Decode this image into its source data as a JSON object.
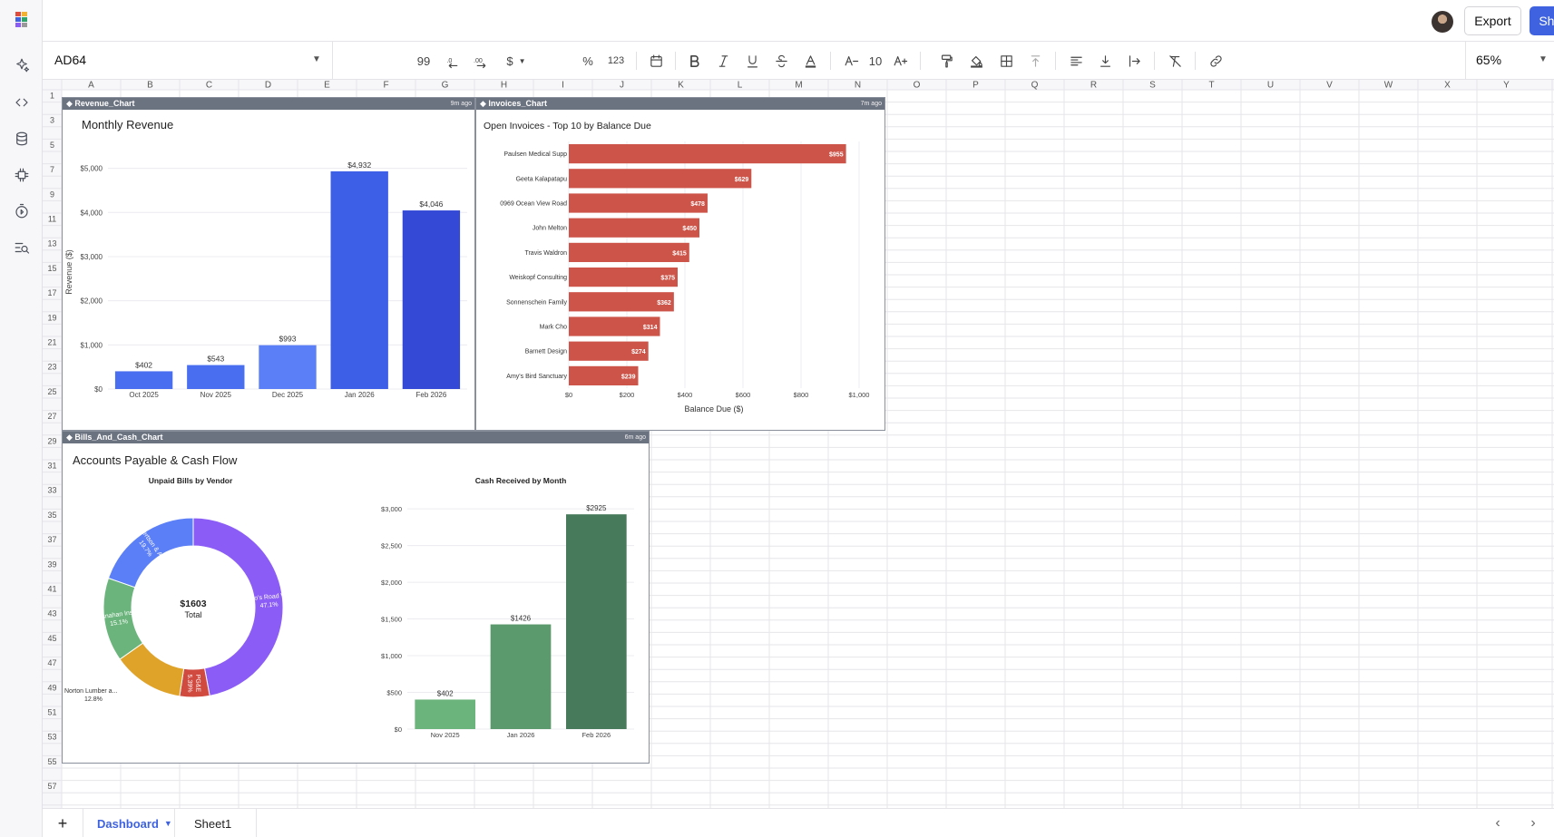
{
  "topbar": {
    "export_label": "Export",
    "share_label": "Share"
  },
  "toolbar": {
    "name_box": "AD64",
    "decimals_label": "99",
    "currency_label": "$",
    "percent_label": "%",
    "number_format_label": "123",
    "font_size": "10",
    "zoom": "65%"
  },
  "grid": {
    "columns": [
      "A",
      "B",
      "C",
      "D",
      "E",
      "F",
      "G",
      "H",
      "I",
      "J",
      "K",
      "L",
      "M",
      "N",
      "O",
      "P",
      "Q",
      "R",
      "S",
      "T",
      "U",
      "V",
      "W",
      "X",
      "Y"
    ],
    "row_labels": [
      "1",
      "3",
      "5",
      "7",
      "9",
      "11",
      "13",
      "15",
      "17",
      "19",
      "21",
      "23",
      "25",
      "27",
      "29",
      "31",
      "33",
      "35",
      "37",
      "39",
      "41",
      "43",
      "45",
      "47",
      "49",
      "51",
      "53",
      "55",
      "57"
    ]
  },
  "panels": {
    "revenue": {
      "name": "Revenue_Chart",
      "age": "9m ago"
    },
    "invoices": {
      "name": "Invoices_Chart",
      "age": "7m ago"
    },
    "bills": {
      "name": "Bills_And_Cash_Chart",
      "age": "6m ago"
    }
  },
  "tabs": {
    "dashboard": "Dashboard",
    "sheet1": "Sheet1"
  },
  "colors": {
    "accent": "#3f63e0",
    "revenue_bars": [
      "#4a6ef0",
      "#4a6ef0",
      "#5b7ff6",
      "#3d5ee6",
      "#3449d6"
    ],
    "invoice_bars": "#cd5449",
    "donut": [
      "#8b5cf6",
      "#d04a40",
      "#e0a32a",
      "#6bb57c",
      "#5b7ff6"
    ],
    "cash_bars": [
      "#6bb57c",
      "#5a9a6c",
      "#477a5a"
    ]
  },
  "chart_data": [
    {
      "type": "bar",
      "title": "Monthly Revenue",
      "categories": [
        "Oct 2025",
        "Nov 2025",
        "Dec 2025",
        "Jan 2026",
        "Feb 2026"
      ],
      "values": [
        402,
        543,
        993,
        4932,
        4046
      ],
      "data_labels": [
        "$402",
        "$543",
        "$993",
        "$4,932",
        "$4,046"
      ],
      "ylabel": "Revenue ($)",
      "ylim": [
        0,
        5300
      ],
      "yticks": [
        0,
        1000,
        2000,
        3000,
        4000,
        5000
      ],
      "ytick_labels": [
        "$0",
        "$1,000",
        "$2,000",
        "$3,000",
        "$4,000",
        "$5,000"
      ],
      "grid": true
    },
    {
      "type": "bar",
      "orientation": "horizontal",
      "title": "Open Invoices - Top 10 by Balance Due",
      "categories": [
        "Paulsen Medical Supp",
        "Geeta Kalapatapu",
        "0969 Ocean View Road",
        "John Melton",
        "Travis Waldron",
        "Weiskopf Consulting",
        "Sonnenschein Family",
        "Mark Cho",
        "Barnett Design",
        "Amy's Bird Sanctuary"
      ],
      "values": [
        955,
        629,
        478,
        450,
        415,
        375,
        362,
        314,
        274,
        239
      ],
      "data_labels": [
        "$955",
        "$629",
        "$478",
        "$450",
        "$415",
        "$375",
        "$362",
        "$314",
        "$274",
        "$239"
      ],
      "xlabel": "Balance Due ($)",
      "xlim": [
        0,
        1000
      ],
      "xticks": [
        0,
        200,
        400,
        600,
        800,
        1000
      ],
      "xtick_labels": [
        "$0",
        "$200",
        "$400",
        "$600",
        "$800",
        "$1,000"
      ],
      "grid": true
    },
    {
      "type": "pie",
      "title": "Accounts Payable & Cash Flow",
      "subtitle": "Unpaid Bills by Vendor",
      "hole": true,
      "center_value": "$1603",
      "center_label": "Total",
      "slices": [
        {
          "label": "Diego's Road Wa...",
          "percent": 47.1,
          "percent_label": "47.1%"
        },
        {
          "label": "PG&E",
          "percent": 5.39,
          "percent_label": "5.39%"
        },
        {
          "label": "Norton Lumber a...",
          "percent": 12.8,
          "percent_label": "12.8%"
        },
        {
          "label": "Brosnahan Insur...",
          "percent": 15.1,
          "percent_label": "15.1%"
        },
        {
          "label": "Robertson & Ass...",
          "percent": 19.7,
          "percent_label": "19.7%"
        }
      ]
    },
    {
      "type": "bar",
      "title": "Cash Received by Month",
      "categories": [
        "Nov 2025",
        "Jan 2026",
        "Feb 2026"
      ],
      "values": [
        402,
        1426,
        2925
      ],
      "data_labels": [
        "$402",
        "$1426",
        "$2925"
      ],
      "ylim": [
        0,
        3100
      ],
      "yticks": [
        0,
        500,
        1000,
        1500,
        2000,
        2500,
        3000
      ],
      "ytick_labels": [
        "$0",
        "$500",
        "$1,000",
        "$1,500",
        "$2,000",
        "$2,500",
        "$3,000"
      ],
      "grid": true
    }
  ]
}
